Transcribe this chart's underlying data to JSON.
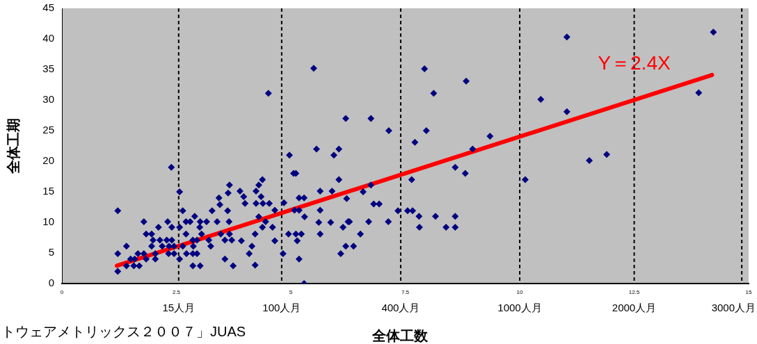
{
  "chart_data": {
    "type": "scatter",
    "xlabel": "全体工数",
    "ylabel": "全体工期",
    "xlim": [
      0,
      15
    ],
    "xticks": [
      0,
      2.5,
      5,
      7.5,
      10,
      12.5,
      15
    ],
    "ylim": [
      0,
      45
    ],
    "yticks": [
      0,
      5,
      10,
      15,
      20,
      25,
      30,
      35,
      40,
      45
    ],
    "series": [
      {
        "color": "#000080",
        "marker": "diamond",
        "x": [
          1.22,
          1.22,
          1.22,
          1.41,
          1.41,
          1.5,
          1.57,
          1.59,
          1.66,
          1.69,
          1.79,
          1.79,
          1.84,
          1.84,
          1.96,
          1.96,
          1.99,
          2.04,
          2.04,
          2.11,
          2.14,
          2.19,
          2.29,
          2.31,
          2.33,
          2.34,
          2.39,
          2.4,
          2.4,
          2.45,
          2.45,
          2.57,
          2.57,
          2.57,
          2.64,
          2.64,
          2.71,
          2.71,
          2.72,
          2.8,
          2.86,
          2.86,
          2.86,
          2.87,
          2.9,
          2.95,
          2.95,
          3.01,
          3.02,
          3.02,
          3.05,
          3.16,
          3.21,
          3.25,
          3.28,
          3.39,
          3.43,
          3.45,
          3.47,
          3.56,
          3.56,
          3.62,
          3.63,
          3.65,
          3.66,
          3.66,
          3.71,
          3.74,
          3.89,
          3.92,
          3.97,
          4.0,
          4.09,
          4.15,
          4.22,
          4.22,
          4.24,
          4.24,
          4.3,
          4.3,
          4.35,
          4.38,
          4.38,
          4.39,
          4.45,
          4.51,
          4.53,
          4.6,
          4.65,
          4.65,
          4.83,
          4.85,
          4.95,
          4.97,
          5.06,
          5.08,
          5.11,
          5.11,
          5.14,
          5.18,
          5.18,
          5.18,
          5.23,
          5.29,
          5.29,
          5.3,
          5.5,
          5.56,
          5.61,
          5.64,
          5.64,
          5.64,
          5.87,
          5.9,
          5.94,
          6.05,
          6.05,
          6.09,
          6.14,
          6.2,
          6.2,
          6.22,
          6.25,
          6.28,
          6.37,
          6.52,
          6.58,
          6.7,
          6.75,
          6.75,
          6.81,
          6.93,
          7.13,
          7.14,
          7.34,
          7.55,
          7.64,
          7.66,
          7.71,
          7.8,
          7.81,
          7.92,
          7.96,
          8.12,
          8.16,
          8.39,
          8.59,
          8.59,
          8.59,
          8.81,
          8.83,
          8.97,
          9.35,
          10.12,
          10.46,
          11.03,
          11.03,
          11.52,
          11.9,
          13.91,
          14.23
        ],
        "values": [
          11.9,
          4.9,
          2.0,
          6.1,
          2.9,
          4.0,
          2.9,
          4.0,
          4.9,
          2.9,
          10.1,
          4.9,
          8.1,
          4.0,
          8.1,
          6.1,
          7.1,
          4.9,
          4.0,
          9.2,
          7.1,
          6.1,
          7.1,
          10.1,
          4.9,
          6.1,
          19.0,
          9.2,
          7.1,
          6.1,
          4.9,
          15.0,
          9.2,
          4.0,
          11.9,
          6.1,
          10.1,
          8.1,
          4.9,
          10.1,
          7.1,
          4.9,
          2.9,
          6.1,
          11.0,
          7.1,
          4.9,
          9.2,
          10.1,
          2.9,
          8.1,
          10.1,
          7.1,
          6.1,
          11.9,
          10.1,
          14.0,
          12.9,
          8.1,
          7.1,
          4.0,
          11.9,
          14.8,
          10.1,
          16.1,
          8.1,
          7.1,
          2.9,
          15.1,
          7.0,
          14.2,
          13.1,
          4.9,
          6.1,
          8.1,
          3.0,
          15.1,
          13.1,
          16.1,
          10.9,
          14.2,
          17.0,
          9.2,
          13.1,
          10.1,
          31.1,
          13.1,
          9.2,
          12.0,
          7.0,
          4.9,
          13.2,
          8.1,
          21.0,
          18.0,
          12.0,
          18.0,
          8.1,
          7.0,
          14.0,
          12.0,
          4.0,
          8.1,
          14.0,
          0,
          10.9,
          35.2,
          22.0,
          10.0,
          15.1,
          12.0,
          8.1,
          10.0,
          15.1,
          21.0,
          22.0,
          17.0,
          4.9,
          9.2,
          27.0,
          6.1,
          13.9,
          10.1,
          10.1,
          6.1,
          8.1,
          15.0,
          10.1,
          27.0,
          16.1,
          13.0,
          13.0,
          10.1,
          25.0,
          11.9,
          11.9,
          17.0,
          11.9,
          23.1,
          11.0,
          9.2,
          35.1,
          25.0,
          31.1,
          11.0,
          9.2,
          19.0,
          11.0,
          9.2,
          18.0,
          33.1,
          22.0,
          24.1,
          17.0,
          30.1,
          40.3,
          28.1,
          20.1,
          21.1,
          31.2,
          41.1
        ]
      },
      {
        "type": "line",
        "color": "#ff0000",
        "x": [
          1.2,
          14.2
        ],
        "values": [
          2.9,
          34.1
        ]
      }
    ],
    "ref_lines": [
      {
        "axis": "x",
        "value": 2.55,
        "label": "15人月",
        "color": "#000000",
        "line_style": "dashed"
      },
      {
        "axis": "x",
        "value": 4.8,
        "label": "100人月",
        "color": "#000000",
        "line_style": "dashed"
      },
      {
        "axis": "x",
        "value": 7.4,
        "label": "400人月",
        "color": "#000000",
        "line_style": "dashed"
      },
      {
        "axis": "x",
        "value": 10,
        "label": "1000人月",
        "color": "#000000",
        "line_style": "dashed"
      },
      {
        "axis": "x",
        "value": 12.5,
        "label": "2000人月",
        "color": "#000000",
        "line_style": "dashed"
      },
      {
        "axis": "x",
        "value": 14.85,
        "label": "3000人月",
        "color": "#000000",
        "line_style": "dashed"
      }
    ],
    "annotations": [
      {
        "text": "Y＝2.4X",
        "x": 12.5,
        "y": 35
      },
      "トウェアメトリックス２００７」JUAS"
    ]
  }
}
